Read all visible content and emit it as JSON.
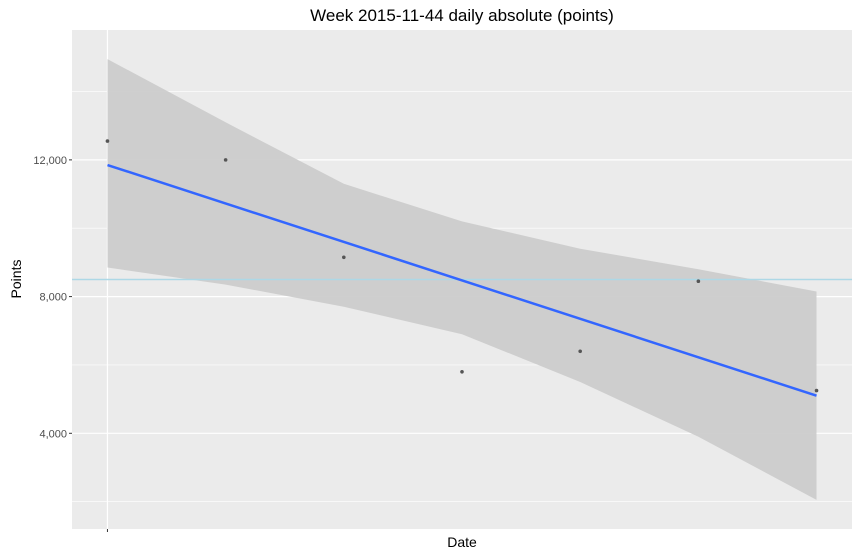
{
  "chart_data": {
    "type": "scatter",
    "title": "Week 2015-11-44 daily absolute (points)",
    "xlabel": "Date",
    "ylabel": "Points",
    "ylim": [
      1200,
      15800
    ],
    "xlim": [
      0.7,
      7.3
    ],
    "y_ticks": [
      4000,
      8000,
      12000
    ],
    "y_tick_labels": [
      "4,000",
      "8,000",
      "12,000"
    ],
    "grid": true,
    "points": [
      {
        "x": 1,
        "y": 12550
      },
      {
        "x": 2,
        "y": 12000
      },
      {
        "x": 3,
        "y": 9150
      },
      {
        "x": 4,
        "y": 5800
      },
      {
        "x": 5,
        "y": 6400
      },
      {
        "x": 6,
        "y": 8450
      },
      {
        "x": 7,
        "y": 5250
      }
    ],
    "trend_line": {
      "start": [
        1,
        11850
      ],
      "end": [
        7,
        5100
      ]
    },
    "confidence_band": {
      "x": [
        1,
        2,
        3,
        4,
        5,
        6,
        7
      ],
      "upper": [
        14950,
        13100,
        11300,
        10200,
        9400,
        8800,
        8150
      ],
      "lower": [
        8850,
        8350,
        7700,
        6900,
        5500,
        3900,
        2050
      ]
    },
    "reference_line_y": 8500,
    "colors": {
      "panel": "#ebebeb",
      "grid": "#ffffff",
      "point": "#555555",
      "trend": "#3366ff",
      "band": "#cccccc",
      "reference": "#add8e6"
    }
  }
}
